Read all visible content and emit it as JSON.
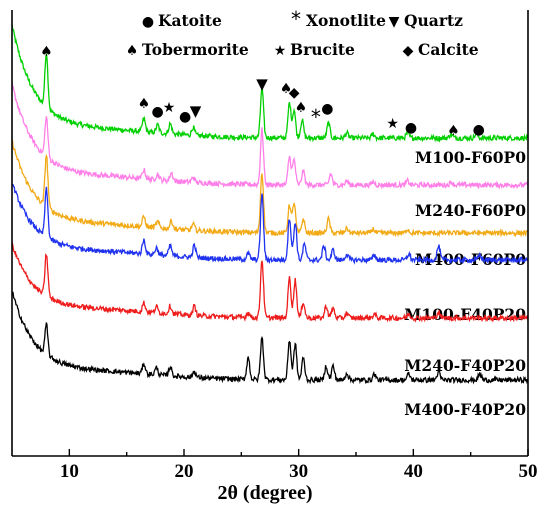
{
  "chart_data": {
    "type": "line",
    "xlabel": "2θ (degree)",
    "ylabel": "",
    "xlim": [
      5,
      50
    ],
    "x_ticks": [
      "10",
      "20",
      "30",
      "40",
      "50"
    ],
    "x_tick_values": [
      10,
      20,
      30,
      40,
      50
    ],
    "legend": [
      {
        "symbol": "●",
        "label": "Katoite"
      },
      {
        "symbol": "*",
        "label": "Xonotlite"
      },
      {
        "symbol": "▼",
        "label": "Quartz"
      },
      {
        "symbol": "♠",
        "label": "Tobermorite"
      },
      {
        "symbol": "★",
        "label": "Brucite"
      },
      {
        "symbol": "◆",
        "label": "Calcite"
      }
    ],
    "peak_markers": [
      {
        "symbol": "♠",
        "x": 8.0
      },
      {
        "symbol": "♠",
        "x": 16.5
      },
      {
        "symbol": "●",
        "x": 17.7
      },
      {
        "symbol": "★",
        "x": 18.7
      },
      {
        "symbol": "●",
        "x": 20.1
      },
      {
        "symbol": "▼",
        "x": 21.0
      },
      {
        "symbol": "▼",
        "x": 26.8
      },
      {
        "symbol": "♠",
        "x": 28.9
      },
      {
        "symbol": "◆",
        "x": 29.6
      },
      {
        "symbol": "♠",
        "x": 30.2
      },
      {
        "symbol": "*",
        "x": 31.5
      },
      {
        "symbol": "●",
        "x": 32.5
      },
      {
        "symbol": "★",
        "x": 38.2
      },
      {
        "symbol": "●",
        "x": 39.8
      },
      {
        "symbol": "♠",
        "x": 43.5
      },
      {
        "symbol": "●",
        "x": 45.7
      }
    ],
    "series": [
      {
        "name": "M100-F60P0",
        "color": "#00d000",
        "baseline_start": 125,
        "baseline_end": 16,
        "peaks": [
          [
            8.0,
            55
          ],
          [
            16.5,
            13
          ],
          [
            17.7,
            8
          ],
          [
            18.8,
            10
          ],
          [
            20.8,
            8
          ],
          [
            26.8,
            50
          ],
          [
            29.2,
            35
          ],
          [
            29.6,
            28
          ],
          [
            30.3,
            18
          ],
          [
            32.6,
            15
          ],
          [
            34.2,
            5
          ],
          [
            36.5,
            4
          ],
          [
            39.5,
            5
          ],
          [
            43.3,
            4
          ],
          [
            45.5,
            4
          ]
        ]
      },
      {
        "name": "M240-F60P0",
        "color": "#ff7fe8",
        "baseline_start": 110,
        "baseline_end": 13,
        "peaks": [
          [
            8.0,
            40
          ],
          [
            16.5,
            9
          ],
          [
            17.7,
            6
          ],
          [
            18.9,
            8
          ],
          [
            20.8,
            5
          ],
          [
            26.8,
            55
          ],
          [
            29.2,
            28
          ],
          [
            29.6,
            25
          ],
          [
            30.4,
            14
          ],
          [
            32.8,
            11
          ],
          [
            34.2,
            4
          ],
          [
            36.5,
            3
          ],
          [
            39.5,
            4
          ],
          [
            43.3,
            3
          ]
        ]
      },
      {
        "name": "M400-F60P0",
        "color": "#f2aa16",
        "baseline_start": 100,
        "baseline_end": 12,
        "peaks": [
          [
            8.0,
            52
          ],
          [
            16.5,
            10
          ],
          [
            17.7,
            6
          ],
          [
            18.9,
            8
          ],
          [
            20.8,
            6
          ],
          [
            26.8,
            60
          ],
          [
            29.2,
            28
          ],
          [
            29.6,
            30
          ],
          [
            30.4,
            14
          ],
          [
            32.6,
            14
          ],
          [
            34.2,
            5
          ],
          [
            36.5,
            4
          ],
          [
            39.5,
            4
          ]
        ]
      },
      {
        "name": "M100-F40P20",
        "color": "#1f32f0",
        "baseline_start": 85,
        "baseline_end": 11,
        "peaks": [
          [
            8.0,
            48
          ],
          [
            16.5,
            14
          ],
          [
            17.6,
            7
          ],
          [
            18.8,
            10
          ],
          [
            20.9,
            12
          ],
          [
            25.6,
            6
          ],
          [
            26.8,
            66
          ],
          [
            29.2,
            42
          ],
          [
            29.7,
            38
          ],
          [
            30.5,
            16
          ],
          [
            32.2,
            14
          ],
          [
            33.0,
            10
          ],
          [
            34.2,
            6
          ],
          [
            36.6,
            5
          ],
          [
            39.6,
            6
          ],
          [
            42.2,
            14
          ],
          [
            45.8,
            5
          ]
        ]
      },
      {
        "name": "M240-F40P20",
        "color": "#ee1c1c",
        "baseline_start": 80,
        "baseline_end": 10,
        "peaks": [
          [
            8.0,
            42
          ],
          [
            16.5,
            9
          ],
          [
            17.6,
            6
          ],
          [
            18.8,
            8
          ],
          [
            20.9,
            9
          ],
          [
            25.6,
            5
          ],
          [
            26.8,
            58
          ],
          [
            29.2,
            40
          ],
          [
            29.7,
            38
          ],
          [
            30.4,
            16
          ],
          [
            32.4,
            12
          ],
          [
            33.0,
            10
          ],
          [
            34.2,
            5
          ],
          [
            36.6,
            4
          ],
          [
            39.6,
            4
          ],
          [
            42.2,
            6
          ]
        ]
      },
      {
        "name": "M400-F40P20",
        "color": "#000000",
        "baseline_start": 95,
        "baseline_end": 10,
        "peaks": [
          [
            8.0,
            30
          ],
          [
            16.5,
            10
          ],
          [
            17.6,
            7
          ],
          [
            18.8,
            9
          ],
          [
            20.9,
            6
          ],
          [
            25.6,
            22
          ],
          [
            26.8,
            42
          ],
          [
            29.2,
            40
          ],
          [
            29.7,
            36
          ],
          [
            30.4,
            22
          ],
          [
            32.4,
            14
          ],
          [
            33.0,
            14
          ],
          [
            34.2,
            7
          ],
          [
            36.6,
            6
          ],
          [
            39.6,
            6
          ],
          [
            42.2,
            8
          ],
          [
            45.8,
            6
          ]
        ]
      }
    ]
  }
}
